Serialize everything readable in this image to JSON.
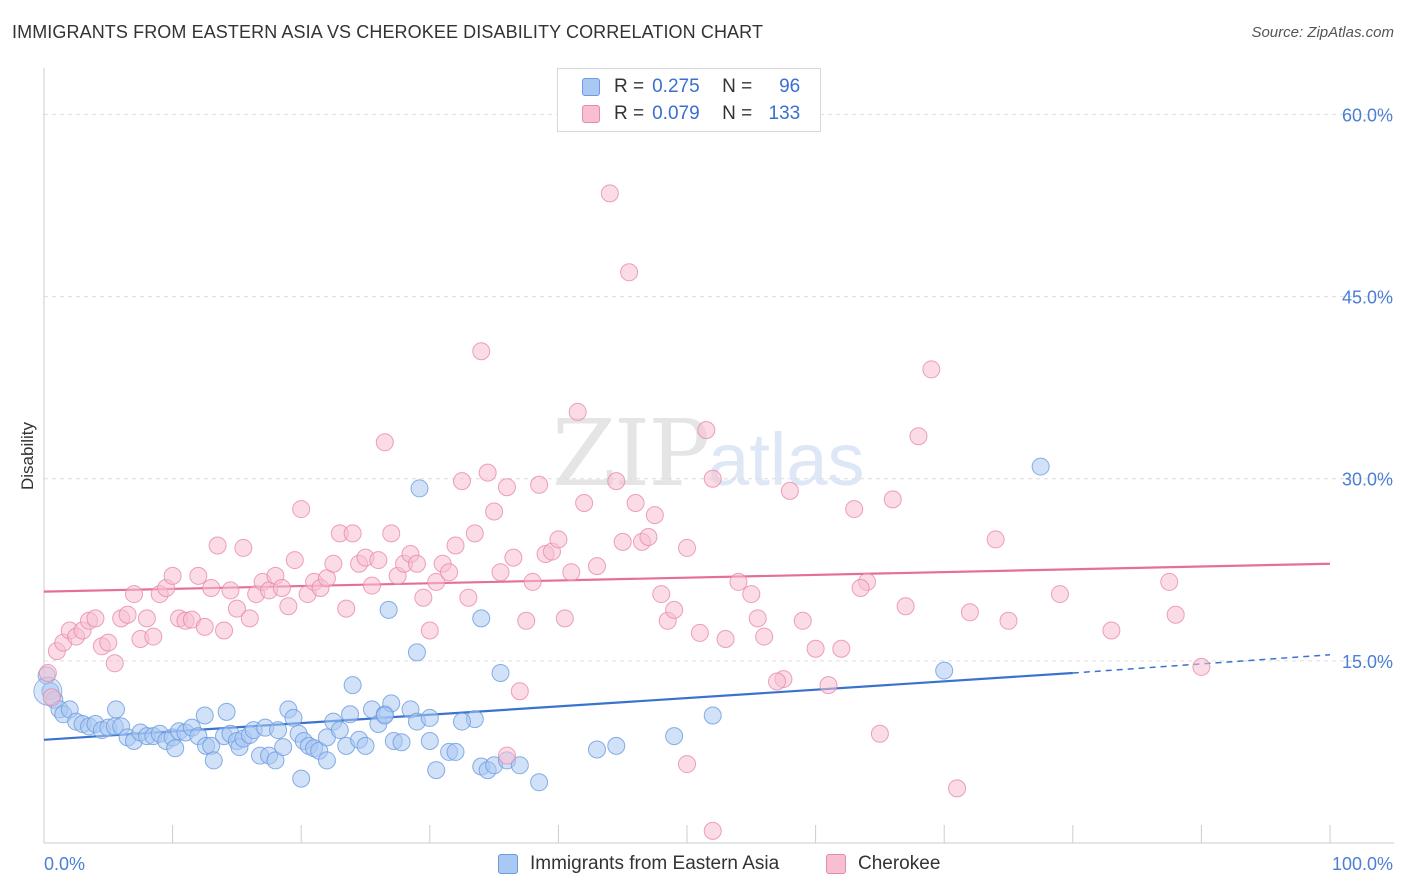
{
  "title": "IMMIGRANTS FROM EASTERN ASIA VS CHEROKEE DISABILITY CORRELATION CHART",
  "source": "Source: ZipAtlas.com",
  "watermark": {
    "zip": "ZIP",
    "atlas": "atlas"
  },
  "legend_top": [
    {
      "r_label": "R =",
      "r_value": "0.275",
      "n_label": "N =",
      "n_value": "96",
      "color": "#a9c8f2",
      "border": "#6c9be0"
    },
    {
      "r_label": "R =",
      "r_value": "0.079",
      "n_label": "N =",
      "n_value": "133",
      "color": "#f7bfd1",
      "border": "#e889a8"
    }
  ],
  "legend_bottom": [
    {
      "label": "Immigrants from Eastern Asia",
      "color": "#a9c8f2",
      "border": "#6c9be0"
    },
    {
      "label": "Cherokee",
      "color": "#f7bfd1",
      "border": "#e889a8"
    }
  ],
  "chart_data": {
    "type": "scatter",
    "title": "IMMIGRANTS FROM EASTERN ASIA VS CHEROKEE DISABILITY CORRELATION CHART",
    "xlabel": "",
    "ylabel": "Disability",
    "xlim": [
      0,
      100
    ],
    "ylim": [
      0,
      63
    ],
    "x_tick_labels": [
      "0.0%",
      "100.0%"
    ],
    "y_ticks": [
      15,
      30,
      45,
      60
    ],
    "y_tick_labels": [
      "15.0%",
      "30.0%",
      "45.0%",
      "60.0%"
    ],
    "grid": true,
    "legend_position": "top-center",
    "series": [
      {
        "name": "Immigrants from Eastern Asia",
        "color": "#6c9be0",
        "fill": "#a9c8f2",
        "trend": {
          "x": [
            0,
            80
          ],
          "y": [
            8.5,
            14.0
          ],
          "dashed_extension": [
            80,
            100
          ],
          "dashed_y_end": 15.5
        },
        "points": [
          [
            0.2,
            13.8
          ],
          [
            0.5,
            12.5
          ],
          [
            0.8,
            11.8
          ],
          [
            1.2,
            11.0
          ],
          [
            1.5,
            10.6
          ],
          [
            2.0,
            11.0
          ],
          [
            2.5,
            10.0
          ],
          [
            3.0,
            9.8
          ],
          [
            3.5,
            9.6
          ],
          [
            4.0,
            9.8
          ],
          [
            4.5,
            9.3
          ],
          [
            5.0,
            9.5
          ],
          [
            5.5,
            9.6
          ],
          [
            5.6,
            11.0
          ],
          [
            6.0,
            9.6
          ],
          [
            6.5,
            8.7
          ],
          [
            7.0,
            8.4
          ],
          [
            7.5,
            9.1
          ],
          [
            8.0,
            8.8
          ],
          [
            8.5,
            8.8
          ],
          [
            9.0,
            9.0
          ],
          [
            9.5,
            8.4
          ],
          [
            10.0,
            8.7
          ],
          [
            10.2,
            7.8
          ],
          [
            10.5,
            9.2
          ],
          [
            11.0,
            9.1
          ],
          [
            11.5,
            9.5
          ],
          [
            12.0,
            8.8
          ],
          [
            12.5,
            10.5
          ],
          [
            12.6,
            8.0
          ],
          [
            13.0,
            8.0
          ],
          [
            13.2,
            6.8
          ],
          [
            14.0,
            8.8
          ],
          [
            14.2,
            10.8
          ],
          [
            14.5,
            9.0
          ],
          [
            15.0,
            8.4
          ],
          [
            15.2,
            7.9
          ],
          [
            15.5,
            8.6
          ],
          [
            16.0,
            8.9
          ],
          [
            16.3,
            9.3
          ],
          [
            16.8,
            7.2
          ],
          [
            17.2,
            9.5
          ],
          [
            17.5,
            7.2
          ],
          [
            18.0,
            6.8
          ],
          [
            18.2,
            9.3
          ],
          [
            18.6,
            7.9
          ],
          [
            19.0,
            11.0
          ],
          [
            19.4,
            10.3
          ],
          [
            19.8,
            9.0
          ],
          [
            20.2,
            8.4
          ],
          [
            20.6,
            8.0
          ],
          [
            21.0,
            7.8
          ],
          [
            21.4,
            7.6
          ],
          [
            22.0,
            8.7
          ],
          [
            22.5,
            10.0
          ],
          [
            23.0,
            9.3
          ],
          [
            23.5,
            8.0
          ],
          [
            23.8,
            10.6
          ],
          [
            24.0,
            13.0
          ],
          [
            24.5,
            8.5
          ],
          [
            25.0,
            8.0
          ],
          [
            25.5,
            11.0
          ],
          [
            26.0,
            9.8
          ],
          [
            26.5,
            10.6
          ],
          [
            27.0,
            11.5
          ],
          [
            27.2,
            8.4
          ],
          [
            27.8,
            8.3
          ],
          [
            28.5,
            11.0
          ],
          [
            29.0,
            10.0
          ],
          [
            30.0,
            8.4
          ],
          [
            31.5,
            7.5
          ],
          [
            32.0,
            7.5
          ],
          [
            30.5,
            6.0
          ],
          [
            29.0,
            15.7
          ],
          [
            29.2,
            29.2
          ],
          [
            34.0,
            6.3
          ],
          [
            34.5,
            6.0
          ],
          [
            35.0,
            6.4
          ],
          [
            36.0,
            6.8
          ],
          [
            37.0,
            6.4
          ],
          [
            38.5,
            5.0
          ],
          [
            43.0,
            7.7
          ],
          [
            44.5,
            8.0
          ],
          [
            49.0,
            8.8
          ],
          [
            52.0,
            10.5
          ],
          [
            70.0,
            14.2
          ],
          [
            77.5,
            31.0
          ],
          [
            26.8,
            19.2
          ],
          [
            34.0,
            18.5
          ],
          [
            35.5,
            14.0
          ],
          [
            30.0,
            10.3
          ],
          [
            20.0,
            5.3
          ],
          [
            22.0,
            6.8
          ],
          [
            33.5,
            10.2
          ],
          [
            26.5,
            10.5
          ],
          [
            32.5,
            10.0
          ]
        ]
      },
      {
        "name": "Cherokee",
        "color": "#e889a8",
        "fill": "#f7bfd1",
        "trend": {
          "x": [
            0,
            100
          ],
          "y": [
            20.7,
            23.0
          ]
        },
        "points": [
          [
            0.3,
            14.0
          ],
          [
            0.6,
            12.0
          ],
          [
            1.0,
            15.8
          ],
          [
            1.5,
            16.5
          ],
          [
            2.0,
            17.5
          ],
          [
            2.5,
            17.0
          ],
          [
            3.0,
            17.5
          ],
          [
            3.5,
            18.3
          ],
          [
            4.0,
            18.5
          ],
          [
            4.5,
            16.2
          ],
          [
            5.0,
            16.5
          ],
          [
            5.5,
            14.8
          ],
          [
            6.0,
            18.5
          ],
          [
            6.5,
            18.8
          ],
          [
            7.0,
            20.5
          ],
          [
            7.5,
            16.8
          ],
          [
            8.0,
            18.5
          ],
          [
            8.5,
            17.0
          ],
          [
            9.0,
            20.5
          ],
          [
            9.5,
            21.0
          ],
          [
            10.0,
            22.0
          ],
          [
            10.5,
            18.5
          ],
          [
            11.0,
            18.3
          ],
          [
            11.5,
            18.4
          ],
          [
            12.0,
            22.0
          ],
          [
            12.5,
            17.8
          ],
          [
            13.0,
            21.0
          ],
          [
            13.5,
            24.5
          ],
          [
            14.0,
            17.5
          ],
          [
            14.5,
            20.8
          ],
          [
            15.0,
            19.3
          ],
          [
            15.5,
            24.3
          ],
          [
            16.0,
            18.5
          ],
          [
            16.5,
            20.5
          ],
          [
            17.0,
            21.5
          ],
          [
            17.5,
            20.8
          ],
          [
            18.0,
            22.0
          ],
          [
            18.5,
            21.0
          ],
          [
            19.0,
            19.5
          ],
          [
            19.5,
            23.3
          ],
          [
            20.0,
            27.5
          ],
          [
            20.5,
            20.5
          ],
          [
            21.0,
            21.5
          ],
          [
            21.5,
            21.0
          ],
          [
            22.0,
            21.8
          ],
          [
            22.5,
            23.0
          ],
          [
            23.0,
            25.5
          ],
          [
            23.5,
            19.3
          ],
          [
            24.0,
            25.5
          ],
          [
            24.5,
            23.0
          ],
          [
            25.0,
            23.5
          ],
          [
            25.5,
            21.2
          ],
          [
            26.0,
            23.3
          ],
          [
            26.5,
            33.0
          ],
          [
            27.0,
            25.5
          ],
          [
            27.5,
            22.0
          ],
          [
            28.0,
            23.0
          ],
          [
            28.5,
            23.8
          ],
          [
            29.0,
            23.0
          ],
          [
            29.5,
            20.2
          ],
          [
            30.0,
            17.5
          ],
          [
            30.5,
            21.5
          ],
          [
            31.0,
            23.0
          ],
          [
            31.5,
            22.3
          ],
          [
            32.0,
            24.5
          ],
          [
            32.5,
            29.8
          ],
          [
            33.0,
            20.2
          ],
          [
            33.5,
            25.5
          ],
          [
            34.0,
            40.5
          ],
          [
            34.5,
            30.5
          ],
          [
            35.0,
            27.3
          ],
          [
            35.5,
            22.3
          ],
          [
            36.0,
            29.3
          ],
          [
            36.5,
            23.5
          ],
          [
            37.0,
            12.5
          ],
          [
            37.5,
            18.3
          ],
          [
            38.0,
            21.5
          ],
          [
            38.5,
            29.5
          ],
          [
            39.0,
            23.8
          ],
          [
            39.5,
            24.0
          ],
          [
            40.0,
            25.0
          ],
          [
            40.5,
            18.5
          ],
          [
            41.0,
            22.3
          ],
          [
            41.5,
            35.5
          ],
          [
            42.0,
            28.0
          ],
          [
            43.0,
            22.8
          ],
          [
            44.0,
            53.5
          ],
          [
            44.5,
            29.8
          ],
          [
            45.0,
            24.8
          ],
          [
            45.5,
            47.0
          ],
          [
            46.0,
            28.0
          ],
          [
            46.5,
            24.8
          ],
          [
            47.0,
            25.2
          ],
          [
            47.5,
            27.0
          ],
          [
            48.0,
            20.5
          ],
          [
            48.5,
            18.3
          ],
          [
            49.0,
            19.2
          ],
          [
            50.0,
            24.3
          ],
          [
            51.0,
            17.3
          ],
          [
            51.5,
            34.0
          ],
          [
            52.0,
            30.0
          ],
          [
            53.0,
            16.8
          ],
          [
            54.0,
            21.5
          ],
          [
            55.0,
            20.5
          ],
          [
            55.5,
            18.5
          ],
          [
            56.0,
            17.0
          ],
          [
            57.5,
            13.5
          ],
          [
            58.0,
            29.0
          ],
          [
            59.0,
            18.3
          ],
          [
            60.0,
            16.0
          ],
          [
            61.0,
            13.0
          ],
          [
            62.0,
            16.0
          ],
          [
            63.0,
            27.5
          ],
          [
            64.0,
            21.5
          ],
          [
            65.0,
            9.0
          ],
          [
            66.0,
            28.3
          ],
          [
            67.0,
            19.5
          ],
          [
            68.0,
            33.5
          ],
          [
            69.0,
            39.0
          ],
          [
            71.0,
            4.5
          ],
          [
            72.0,
            19.0
          ],
          [
            74.0,
            25.0
          ],
          [
            75.0,
            18.3
          ],
          [
            79.0,
            20.5
          ],
          [
            83.0,
            17.5
          ],
          [
            87.5,
            21.5
          ],
          [
            88.0,
            18.8
          ],
          [
            90.0,
            14.5
          ],
          [
            50.0,
            6.5
          ],
          [
            52.0,
            1.0
          ],
          [
            36.0,
            7.2
          ],
          [
            57.0,
            13.3
          ],
          [
            63.5,
            21.0
          ]
        ]
      }
    ]
  }
}
